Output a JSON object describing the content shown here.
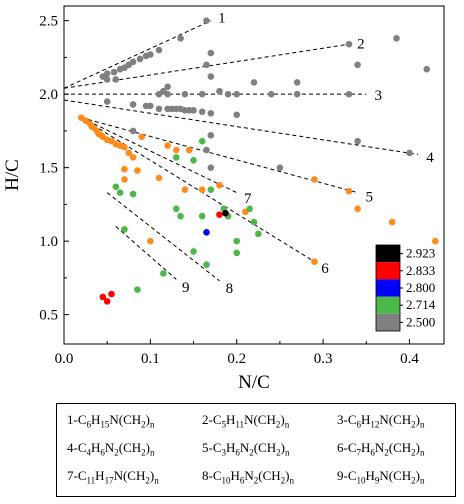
{
  "chart_data": {
    "type": "scatter",
    "xlabel": "N/C",
    "ylabel": "H/C",
    "xlim": [
      0.0,
      0.44
    ],
    "ylim": [
      0.3,
      2.6
    ],
    "xticks": [
      "0.0",
      "0.1",
      "0.2",
      "0.3",
      "0.4"
    ],
    "yticks": [
      "0.5",
      "1.0",
      "1.5",
      "2.0",
      "2.5"
    ],
    "colorbar": {
      "labels": [
        "2.923",
        "2.833",
        "2.800",
        "2.714",
        "2.500"
      ],
      "colors": [
        "#000000",
        "#ff0000",
        "#0000ff",
        "#4cb848",
        "#808080"
      ],
      "orange": "#ff8c1a"
    },
    "lines": [
      {
        "label": "1",
        "x": [
          0.0,
          0.17
        ],
        "y": [
          2.04,
          2.5
        ]
      },
      {
        "label": "2",
        "x": [
          0.0,
          0.33
        ],
        "y": [
          2.04,
          2.34
        ]
      },
      {
        "label": "3",
        "x": [
          0.0,
          0.35
        ],
        "y": [
          2.0,
          2.0
        ]
      },
      {
        "label": "4",
        "x": [
          0.0,
          0.41
        ],
        "y": [
          1.96,
          1.59
        ]
      },
      {
        "label": "5",
        "x": [
          0.02,
          0.34
        ],
        "y": [
          1.84,
          1.33
        ]
      },
      {
        "label": "6",
        "x": [
          0.02,
          0.29
        ],
        "y": [
          1.84,
          0.86
        ]
      },
      {
        "label": "7",
        "x": [
          0.02,
          0.2
        ],
        "y": [
          1.84,
          1.33
        ]
      },
      {
        "label": "8",
        "x": [
          0.05,
          0.18
        ],
        "y": [
          1.33,
          0.73
        ]
      },
      {
        "label": "9",
        "x": [
          0.06,
          0.13
        ],
        "y": [
          1.1,
          0.74
        ]
      }
    ],
    "series": [
      {
        "color": "gray",
        "points": [
          [
            0.165,
            2.5
          ],
          [
            0.135,
            2.38
          ],
          [
            0.11,
            2.3
          ],
          [
            0.1,
            2.27
          ],
          [
            0.095,
            2.26
          ],
          [
            0.088,
            2.24
          ],
          [
            0.08,
            2.22
          ],
          [
            0.075,
            2.2
          ],
          [
            0.07,
            2.18
          ],
          [
            0.065,
            2.17
          ],
          [
            0.058,
            2.15
          ],
          [
            0.05,
            2.14
          ],
          [
            0.045,
            2.12
          ],
          [
            0.05,
            2.1
          ],
          [
            0.06,
            2.1
          ],
          [
            0.17,
            2.28
          ],
          [
            0.165,
            2.2
          ],
          [
            0.17,
            2.12
          ],
          [
            0.18,
            2.02
          ],
          [
            0.19,
            2.0
          ],
          [
            0.22,
            2.08
          ],
          [
            0.27,
            2.08
          ],
          [
            0.33,
            2.34
          ],
          [
            0.34,
            2.2
          ],
          [
            0.385,
            2.38
          ],
          [
            0.42,
            2.17
          ],
          [
            0.12,
            2.05
          ],
          [
            0.115,
            2.02
          ],
          [
            0.11,
            2.0
          ],
          [
            0.12,
            2.0
          ],
          [
            0.14,
            2.0
          ],
          [
            0.16,
            2.0
          ],
          [
            0.2,
            2.0
          ],
          [
            0.24,
            2.0
          ],
          [
            0.27,
            2.0
          ],
          [
            0.33,
            2.0
          ],
          [
            0.05,
            1.95
          ],
          [
            0.08,
            1.93
          ],
          [
            0.095,
            1.92
          ],
          [
            0.1,
            1.92
          ],
          [
            0.11,
            1.9
          ],
          [
            0.12,
            1.9
          ],
          [
            0.125,
            1.9
          ],
          [
            0.13,
            1.9
          ],
          [
            0.135,
            1.9
          ],
          [
            0.14,
            1.89
          ],
          [
            0.145,
            1.89
          ],
          [
            0.15,
            1.89
          ],
          [
            0.16,
            1.88
          ],
          [
            0.17,
            1.87
          ],
          [
            0.2,
            1.86
          ],
          [
            0.08,
            1.75
          ],
          [
            0.17,
            1.72
          ],
          [
            0.165,
            1.62
          ],
          [
            0.17,
            1.5
          ],
          [
            0.25,
            1.5
          ],
          [
            0.34,
            1.68
          ],
          [
            0.4,
            1.6
          ]
        ]
      },
      {
        "color": "orange",
        "points": [
          [
            0.02,
            1.84
          ],
          [
            0.025,
            1.82
          ],
          [
            0.03,
            1.8
          ],
          [
            0.032,
            1.78
          ],
          [
            0.035,
            1.77
          ],
          [
            0.038,
            1.75
          ],
          [
            0.04,
            1.73
          ],
          [
            0.043,
            1.72
          ],
          [
            0.045,
            1.71
          ],
          [
            0.05,
            1.69
          ],
          [
            0.055,
            1.68
          ],
          [
            0.06,
            1.66
          ],
          [
            0.065,
            1.65
          ],
          [
            0.07,
            1.64
          ],
          [
            0.075,
            1.6
          ],
          [
            0.08,
            1.57
          ],
          [
            0.09,
            1.71
          ],
          [
            0.07,
            1.49
          ],
          [
            0.085,
            1.48
          ],
          [
            0.12,
            1.65
          ],
          [
            0.13,
            1.62
          ],
          [
            0.145,
            1.62
          ],
          [
            0.07,
            1.42
          ],
          [
            0.11,
            1.43
          ],
          [
            0.14,
            1.35
          ],
          [
            0.16,
            1.35
          ],
          [
            0.18,
            1.38
          ],
          [
            0.21,
            1.2
          ],
          [
            0.29,
            1.42
          ],
          [
            0.33,
            1.34
          ],
          [
            0.34,
            1.22
          ],
          [
            0.1,
            1.0
          ],
          [
            0.29,
            0.86
          ],
          [
            0.38,
            1.13
          ],
          [
            0.43,
            1.0
          ],
          [
            0.38,
            0.9
          ]
        ]
      },
      {
        "color": "green",
        "points": [
          [
            0.16,
            1.68
          ],
          [
            0.13,
            1.57
          ],
          [
            0.15,
            1.55
          ],
          [
            0.06,
            1.37
          ],
          [
            0.065,
            1.33
          ],
          [
            0.08,
            1.32
          ],
          [
            0.17,
            1.35
          ],
          [
            0.13,
            1.22
          ],
          [
            0.135,
            1.17
          ],
          [
            0.16,
            1.17
          ],
          [
            0.185,
            1.22
          ],
          [
            0.19,
            1.17
          ],
          [
            0.215,
            1.22
          ],
          [
            0.22,
            1.13
          ],
          [
            0.2,
            1.0
          ],
          [
            0.225,
            1.05
          ],
          [
            0.2,
            0.92
          ],
          [
            0.15,
            0.93
          ],
          [
            0.165,
            0.84
          ],
          [
            0.115,
            0.78
          ],
          [
            0.085,
            0.67
          ],
          [
            0.07,
            1.08
          ],
          [
            0.37,
            0.92
          ]
        ]
      },
      {
        "color": "blue",
        "points": [
          [
            0.165,
            1.06
          ]
        ]
      },
      {
        "color": "red",
        "points": [
          [
            0.18,
            1.18
          ],
          [
            0.045,
            0.62
          ],
          [
            0.05,
            0.59
          ],
          [
            0.055,
            0.64
          ]
        ]
      },
      {
        "color": "black",
        "points": [
          [
            0.187,
            1.19
          ]
        ]
      }
    ]
  },
  "legend": {
    "items": [
      {
        "prefix": "1-C",
        "parts": [
          [
            "6",
            "H"
          ],
          [
            "15",
            "N(CH"
          ],
          [
            "2",
            ")"
          ],
          [
            "n",
            ""
          ]
        ]
      },
      {
        "prefix": "2-C",
        "parts": [
          [
            "5",
            "H"
          ],
          [
            "11",
            "N(CH"
          ],
          [
            "2",
            ")"
          ],
          [
            "n",
            ""
          ]
        ]
      },
      {
        "prefix": "3-C",
        "parts": [
          [
            "6",
            "H"
          ],
          [
            "12",
            "N(CH"
          ],
          [
            "2",
            ")"
          ],
          [
            "n",
            ""
          ]
        ]
      },
      {
        "prefix": "4-C",
        "parts": [
          [
            "4",
            "H"
          ],
          [
            "6",
            "N"
          ],
          [
            "2",
            "(CH"
          ],
          [
            "2",
            ")"
          ],
          [
            "n",
            ""
          ]
        ]
      },
      {
        "prefix": "5-C",
        "parts": [
          [
            "3",
            "H"
          ],
          [
            "6",
            "N"
          ],
          [
            "2",
            "(CH"
          ],
          [
            "2",
            ")"
          ],
          [
            "n",
            ""
          ]
        ]
      },
      {
        "prefix": "6-C",
        "parts": [
          [
            "7",
            "H"
          ],
          [
            "6",
            "N"
          ],
          [
            "2",
            "(CH"
          ],
          [
            "2",
            ")"
          ],
          [
            "n",
            ""
          ]
        ]
      },
      {
        "prefix": "7-C",
        "parts": [
          [
            "11",
            "H"
          ],
          [
            "17",
            "N(CH"
          ],
          [
            "2",
            ")"
          ],
          [
            "n",
            ""
          ]
        ]
      },
      {
        "prefix": "8-C",
        "parts": [
          [
            "10",
            "H"
          ],
          [
            "6",
            "N"
          ],
          [
            "2",
            "(CH"
          ],
          [
            "2",
            ")"
          ],
          [
            "n",
            ""
          ]
        ]
      },
      {
        "prefix": "9-C",
        "parts": [
          [
            "10",
            "H"
          ],
          [
            "9",
            "N(CH"
          ],
          [
            "2",
            ")"
          ],
          [
            "n",
            ""
          ]
        ]
      }
    ]
  }
}
